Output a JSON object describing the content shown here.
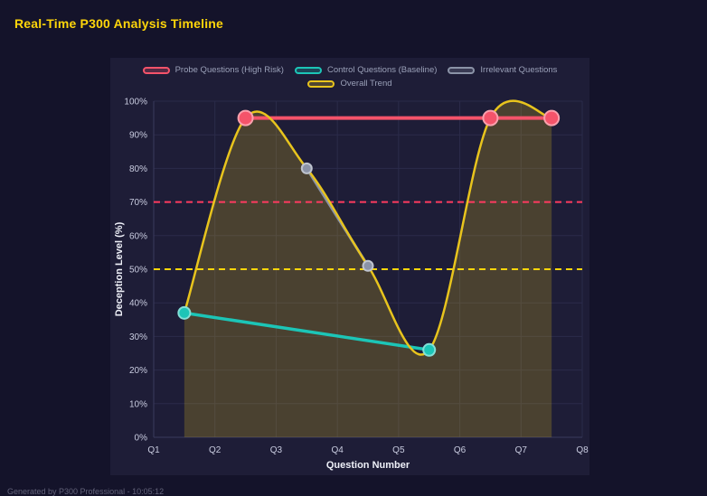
{
  "page": {
    "title": "Real-Time P300 Analysis Timeline",
    "footer": "Generated by P300 Professional - 10:05:12"
  },
  "theme": {
    "page_bg": "#14132a",
    "panel_bg": "#1e1d37",
    "grid": "#2b2b4a",
    "axis_line": "#3a3a5c",
    "tick_text": "#c9cce0",
    "axis_title": "#eef0f8",
    "legend_text": "#9aa0b8",
    "title_text": "#ffd60a",
    "footer_text": "#63637a"
  },
  "chart_data": {
    "type": "line",
    "title": "Real-Time P300 Analysis Timeline",
    "xlabel": "Question Number",
    "ylabel": "Deception Level (%)",
    "x_ticks": [
      "Q1",
      "Q2",
      "Q3",
      "Q4",
      "Q5",
      "Q6",
      "Q7",
      "Q8"
    ],
    "y_ticks": [
      "0%",
      "10%",
      "20%",
      "30%",
      "40%",
      "50%",
      "60%",
      "70%",
      "80%",
      "90%",
      "100%"
    ],
    "xlim": [
      1,
      8
    ],
    "ylim": [
      0,
      100
    ],
    "grid": true,
    "legend_position": "top",
    "series": [
      {
        "name": "Probe Questions (High Risk)",
        "color": "#f4536a",
        "line_width": 4,
        "marker_radius": 8,
        "smooth": false,
        "points": [
          [
            2.5,
            95
          ],
          [
            6.5,
            95
          ],
          [
            7.5,
            95
          ]
        ]
      },
      {
        "name": "Control Questions (Baseline)",
        "color": "#1cc5b7",
        "line_width": 3.5,
        "marker_radius": 6.5,
        "smooth": false,
        "points": [
          [
            1.5,
            37
          ],
          [
            5.5,
            26
          ]
        ]
      },
      {
        "name": "Irrelevant Questions",
        "color": "#8b93a7",
        "line_width": 3,
        "marker_radius": 5.5,
        "smooth": false,
        "points": [
          [
            3.5,
            80
          ],
          [
            4.5,
            51
          ]
        ]
      },
      {
        "name": "Overall Trend",
        "color": "#e8c41d",
        "line_width": 2.5,
        "marker_radius": 0,
        "smooth": true,
        "fill_alpha": 0.22,
        "points": [
          [
            1.5,
            37
          ],
          [
            2.5,
            95
          ],
          [
            3.5,
            80
          ],
          [
            4.5,
            51
          ],
          [
            5.5,
            26
          ],
          [
            6.5,
            95
          ],
          [
            7.5,
            95
          ]
        ]
      }
    ],
    "thresholds": [
      {
        "value": 70,
        "color": "#ff3b5f",
        "dash": "7 5"
      },
      {
        "value": 50,
        "color": "#ffd60a",
        "dash": "7 5"
      }
    ]
  }
}
